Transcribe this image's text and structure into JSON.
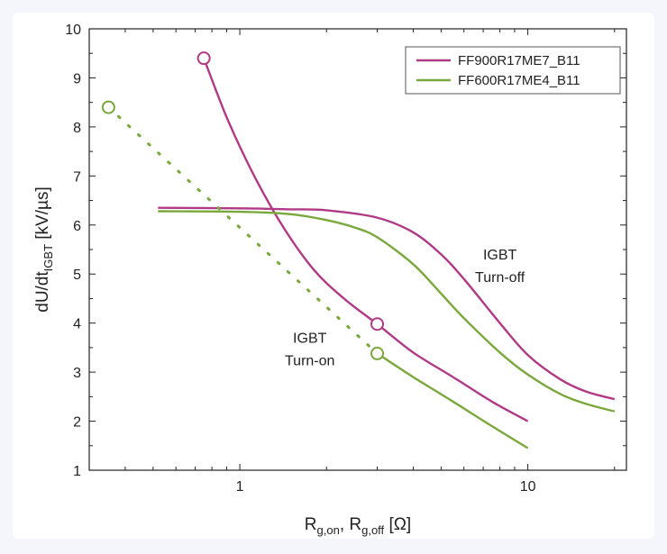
{
  "chart_data": {
    "type": "line",
    "xscale": "log",
    "xlim": [
      0.3,
      22
    ],
    "ylim": [
      1,
      10
    ],
    "x_ticks": [
      {
        "value": 1,
        "label": "1"
      },
      {
        "value": 10,
        "label": "10"
      }
    ],
    "y_ticks": [
      {
        "value": 1,
        "label": "1"
      },
      {
        "value": 2,
        "label": "2"
      },
      {
        "value": 3,
        "label": "3"
      },
      {
        "value": 4,
        "label": "4"
      },
      {
        "value": 5,
        "label": "5"
      },
      {
        "value": 6,
        "label": "6"
      },
      {
        "value": 7,
        "label": "7"
      },
      {
        "value": 8,
        "label": "8"
      },
      {
        "value": 9,
        "label": "9"
      },
      {
        "value": 10,
        "label": "10"
      }
    ],
    "xlabel": {
      "main1": "R",
      "sub1": "g,on",
      "sep": ", ",
      "main2": "R",
      "sub2": "g,off",
      "unit": " [Ω]"
    },
    "ylabel": {
      "main": "dU/dt",
      "sub": "IGBT",
      "unit": " [kV/µs]"
    },
    "legend": {
      "position": "top-right"
    },
    "annotations": [
      {
        "id": "on",
        "lines": [
          "IGBT",
          "Turn-on"
        ],
        "x": 1.75,
        "y": 3.6
      },
      {
        "id": "off",
        "lines": [
          "IGBT",
          "Turn-off"
        ],
        "x": 8.0,
        "y": 5.3
      }
    ],
    "series": [
      {
        "name": "FF900R17ME7_B11",
        "color": "#b03a86",
        "turn_on": {
          "x": [
            0.75,
            0.9,
            1.1,
            1.4,
            1.8,
            2.3,
            3.0,
            4.0,
            5.5,
            7.5,
            10.0
          ],
          "y": [
            9.4,
            8.2,
            7.1,
            6.0,
            5.1,
            4.5,
            3.98,
            3.4,
            2.9,
            2.4,
            2.0
          ]
        },
        "turn_on_marker": [
          {
            "x": 0.75,
            "y": 9.4
          },
          {
            "x": 3.0,
            "y": 3.98
          }
        ],
        "turn_off": {
          "x": [
            0.52,
            1.0,
            1.5,
            2.0,
            3.0,
            4.0,
            5.0,
            6.0,
            8.0,
            10.0,
            13.0,
            16.0,
            20.0
          ],
          "y": [
            6.35,
            6.34,
            6.32,
            6.3,
            6.15,
            5.85,
            5.4,
            4.9,
            4.0,
            3.35,
            2.85,
            2.6,
            2.45
          ]
        }
      },
      {
        "name": "FF600R17ME4_B11",
        "color": "#7aa83c",
        "turn_on_dotted": {
          "x": [
            0.35,
            3.0
          ],
          "y": [
            8.4,
            3.38
          ]
        },
        "turn_on_marker": [
          {
            "x": 0.35,
            "y": 8.4
          },
          {
            "x": 3.0,
            "y": 3.38
          }
        ],
        "turn_on": {
          "x": [
            3.0,
            4.0,
            5.5,
            7.5,
            10.0
          ],
          "y": [
            3.38,
            2.9,
            2.4,
            1.9,
            1.45
          ]
        },
        "turn_off": {
          "x": [
            0.52,
            1.0,
            1.5,
            2.0,
            2.5,
            3.0,
            4.0,
            5.0,
            6.0,
            8.0,
            10.0,
            13.0,
            16.0,
            20.0
          ],
          "y": [
            6.28,
            6.27,
            6.22,
            6.1,
            5.95,
            5.75,
            5.2,
            4.6,
            4.1,
            3.4,
            2.95,
            2.55,
            2.35,
            2.2
          ]
        }
      }
    ]
  }
}
